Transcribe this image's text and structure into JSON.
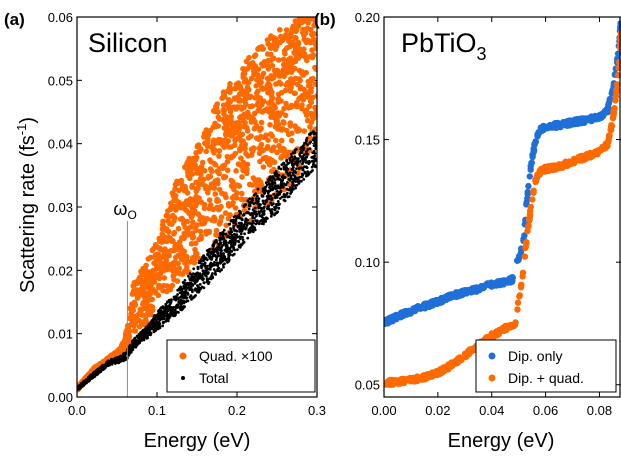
{
  "chart_data": [
    {
      "type": "scatter",
      "panel_label": "(a)",
      "title": "Silicon",
      "xlabel": "Energy (eV)",
      "ylabel": "Scattering rate (fs",
      "ylabel_sup": "-1",
      "ylabel_close": ")",
      "xlim": [
        0.0,
        0.3
      ],
      "ylim": [
        0.0,
        0.06
      ],
      "xticks": [
        0.0,
        0.1,
        0.2,
        0.3
      ],
      "xtick_labels": [
        "0.0",
        "0.1",
        "0.2",
        "0.3"
      ],
      "yticks": [
        0.0,
        0.01,
        0.02,
        0.03,
        0.04,
        0.05,
        0.06
      ],
      "ytick_labels": [
        "0.00",
        "0.01",
        "0.02",
        "0.03",
        "0.04",
        "0.05",
        "0.06"
      ],
      "annotation": {
        "text": "ω",
        "subscript": "O",
        "x": 0.063
      },
      "legend_position": "bottom-right",
      "series": [
        {
          "name": "Quad. ×100",
          "color": "#ff6a00",
          "x": [
            0.0,
            0.02,
            0.04,
            0.055,
            0.063,
            0.07,
            0.09,
            0.1,
            0.12,
            0.15,
            0.18,
            0.2,
            0.22,
            0.25,
            0.28,
            0.3
          ],
          "y_low": [
            0.001,
            0.0035,
            0.0055,
            0.0065,
            0.0075,
            0.0095,
            0.012,
            0.014,
            0.017,
            0.021,
            0.024,
            0.026,
            0.028,
            0.031,
            0.036,
            0.039
          ],
          "y_high": [
            0.0015,
            0.0045,
            0.0063,
            0.0078,
            0.011,
            0.018,
            0.022,
            0.025,
            0.033,
            0.04,
            0.048,
            0.051,
            0.055,
            0.058,
            0.06,
            0.06
          ]
        },
        {
          "name": "Total",
          "color": "#000000",
          "x": [
            0.0,
            0.02,
            0.04,
            0.055,
            0.063,
            0.07,
            0.09,
            0.1,
            0.12,
            0.15,
            0.18,
            0.2,
            0.22,
            0.25,
            0.28,
            0.3
          ],
          "y_low": [
            0.001,
            0.003,
            0.005,
            0.0055,
            0.006,
            0.0075,
            0.0095,
            0.0105,
            0.0125,
            0.016,
            0.02,
            0.023,
            0.026,
            0.029,
            0.034,
            0.036
          ],
          "y_high": [
            0.0015,
            0.0038,
            0.0058,
            0.0065,
            0.0075,
            0.009,
            0.0115,
            0.0135,
            0.016,
            0.021,
            0.026,
            0.029,
            0.032,
            0.036,
            0.04,
            0.043
          ]
        }
      ]
    },
    {
      "type": "scatter",
      "panel_label": "(b)",
      "title": "PbTiO",
      "title_sub": "3",
      "xlabel": "Energy (eV)",
      "xlim": [
        0.0,
        0.088
      ],
      "ylim": [
        0.045,
        0.2
      ],
      "xticks": [
        0.0,
        0.02,
        0.04,
        0.06,
        0.08
      ],
      "xtick_labels": [
        "0.00",
        "0.02",
        "0.04",
        "0.06",
        "0.08"
      ],
      "yticks": [
        0.05,
        0.1,
        0.15,
        0.2
      ],
      "ytick_labels": [
        "0.05",
        "0.10",
        "0.15",
        "0.20"
      ],
      "legend_position": "bottom-right",
      "series": [
        {
          "name": "Dip. only",
          "color": "#1f6fd8",
          "segments": [
            {
              "x": [
                0.0,
                0.005,
                0.01,
                0.015,
                0.02,
                0.025,
                0.03,
                0.035,
                0.04,
                0.045,
                0.048
              ],
              "y": [
                0.075,
                0.078,
                0.08,
                0.082,
                0.084,
                0.086,
                0.088,
                0.089,
                0.091,
                0.092,
                0.093
              ]
            },
            {
              "x": [
                0.0495,
                0.051,
                0.052,
                0.053,
                0.054,
                0.055,
                0.056,
                0.057,
                0.058,
                0.06,
                0.065,
                0.07,
                0.075,
                0.08,
                0.083,
                0.085,
                0.087,
                0.088
              ],
              "y": [
                0.1,
                0.105,
                0.11,
                0.125,
                0.135,
                0.142,
                0.148,
                0.152,
                0.154,
                0.155,
                0.156,
                0.157,
                0.158,
                0.159,
                0.162,
                0.17,
                0.185,
                0.2
              ]
            }
          ]
        },
        {
          "name": "Dip. + quad.",
          "color": "#ff6a00",
          "segments": [
            {
              "x": [
                0.0,
                0.005,
                0.01,
                0.015,
                0.02,
                0.025,
                0.03,
                0.035,
                0.04,
                0.045,
                0.049
              ],
              "y": [
                0.051,
                0.051,
                0.052,
                0.053,
                0.055,
                0.058,
                0.062,
                0.066,
                0.07,
                0.073,
                0.075
              ]
            },
            {
              "x": [
                0.0495,
                0.051,
                0.052,
                0.053,
                0.054,
                0.055,
                0.056,
                0.057,
                0.058,
                0.06,
                0.065,
                0.07,
                0.075,
                0.08,
                0.083,
                0.085,
                0.087,
                0.088
              ],
              "y": [
                0.081,
                0.09,
                0.1,
                0.11,
                0.118,
                0.126,
                0.132,
                0.135,
                0.137,
                0.138,
                0.139,
                0.141,
                0.143,
                0.145,
                0.148,
                0.158,
                0.176,
                0.195
              ]
            }
          ]
        }
      ]
    }
  ]
}
